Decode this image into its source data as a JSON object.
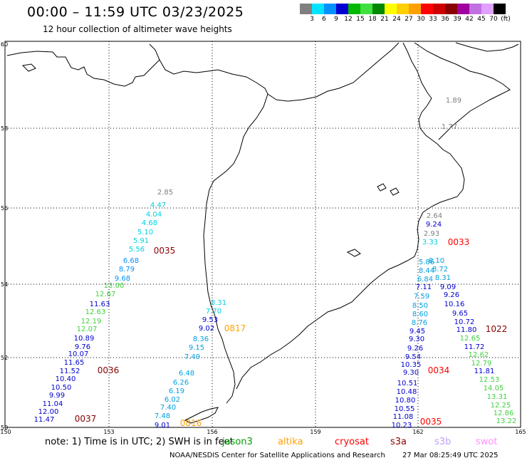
{
  "title": "00:00 – 11:59 UTC 03/23/2025",
  "subtitle": "12 hour collection of altimeter wave heights",
  "color_scale": {
    "labels": [
      "3",
      "6",
      "9",
      "12",
      "15",
      "18",
      "21",
      "24",
      "27",
      "30",
      "33",
      "36",
      "39",
      "42",
      "45",
      "70",
      "(ft)"
    ],
    "colors": [
      "#808080",
      "#00e5ff",
      "#0090ff",
      "#0000d0",
      "#00b800",
      "#40e040",
      "#008800",
      "#ffff00",
      "#ffd000",
      "#ffa000",
      "#ff0000",
      "#cc0000",
      "#8a0000",
      "#a000a0",
      "#c070e0",
      "#e0a0ff",
      "#000000"
    ]
  },
  "grid": {
    "lat_labels": [
      "60",
      "58",
      "56",
      "54",
      "52",
      "50"
    ],
    "lon_labels": [
      "150",
      "153",
      "156",
      "159",
      "162",
      "165"
    ]
  },
  "tracks": [
    {
      "color": "#808080",
      "values": [
        "2.85"
      ]
    },
    {
      "color": "#00d0e0",
      "values": [
        "4.47",
        "4.04",
        "4.68",
        "5.10",
        "5.91",
        "5.56"
      ]
    },
    {
      "color": "#0090ff",
      "values": [
        "6.68",
        "8.79",
        "9.68"
      ]
    },
    {
      "color": "#40d040",
      "values": [
        "13.00",
        "12.67"
      ]
    },
    {
      "color": "#0000d0",
      "values": [
        "11.63"
      ]
    },
    {
      "color": "#40d040",
      "values": [
        "12.63",
        "12.19",
        "12.07"
      ]
    },
    {
      "color": "#0000d0",
      "values": [
        "10.89",
        "9.76",
        "10.07",
        "11.65",
        "11.52",
        "10.40",
        "10.50",
        "9.99",
        "11.04",
        "12.00",
        "11.47"
      ]
    },
    {
      "color": "#00d0e0",
      "values": [
        "8.31",
        "7.70"
      ]
    },
    {
      "color": "#0000d0",
      "values": [
        "9.53",
        "9.02"
      ]
    },
    {
      "color": "#00a0e0",
      "values": [
        "8.36",
        "9.15",
        "7.49",
        "6.48",
        "6.26",
        "6.19",
        "6.02",
        "7.40",
        "7.48"
      ]
    },
    {
      "color": "#0000d0",
      "values": [
        "9.01"
      ]
    },
    {
      "color": "#808080",
      "values": [
        "1.89",
        "1.77",
        "2.64"
      ]
    },
    {
      "color": "#0000d0",
      "values": [
        "9.24"
      ]
    },
    {
      "color": "#808080",
      "values": [
        "2.93"
      ]
    },
    {
      "color": "#00d0e0",
      "values": [
        "3.33"
      ]
    },
    {
      "color": "#00a0e0",
      "values": [
        "5.86",
        "8.10",
        "8.44",
        "8.72",
        "6.84",
        "8.31"
      ]
    },
    {
      "color": "#0000d0",
      "values": [
        "7.11",
        "9.09"
      ]
    },
    {
      "color": "#00a0e0",
      "values": [
        "7.59"
      ]
    },
    {
      "color": "#0000d0",
      "values": [
        "9.26"
      ]
    },
    {
      "color": "#00a0e0",
      "values": [
        "8.50"
      ]
    },
    {
      "color": "#0000d0",
      "values": [
        "10.16"
      ]
    },
    {
      "color": "#00a0e0",
      "values": [
        "8.60"
      ]
    },
    {
      "color": "#0000d0",
      "values": [
        "9.65"
      ]
    },
    {
      "color": "#00a0e0",
      "values": [
        "8.76"
      ]
    },
    {
      "color": "#0000d0",
      "values": [
        "10.72",
        "9.45",
        "11.80"
      ]
    },
    {
      "color": "#40d040",
      "values": [
        "12.65"
      ]
    },
    {
      "color": "#0000d0",
      "values": [
        "9.30",
        "9.26",
        "11.72",
        "9.54"
      ]
    },
    {
      "color": "#40d040",
      "values": [
        "12.62"
      ]
    },
    {
      "color": "#0000d0",
      "values": [
        "10.35"
      ]
    },
    {
      "color": "#40d040",
      "values": [
        "12.79"
      ]
    },
    {
      "color": "#0000d0",
      "values": [
        "9.30",
        "11.81"
      ]
    },
    {
      "color": "#40d040",
      "values": [
        "12.53"
      ]
    },
    {
      "color": "#0000d0",
      "values": [
        "10.51"
      ]
    },
    {
      "color": "#40d040",
      "values": [
        "14.05"
      ]
    },
    {
      "color": "#0000d0",
      "values": [
        "10.48"
      ]
    },
    {
      "color": "#40d040",
      "values": [
        "13.31"
      ]
    },
    {
      "color": "#0000d0",
      "values": [
        "10.80"
      ]
    },
    {
      "color": "#40d040",
      "values": [
        "12.25"
      ]
    },
    {
      "color": "#0000d0",
      "values": [
        "10.55"
      ]
    },
    {
      "color": "#40d040",
      "values": [
        "12.86"
      ]
    },
    {
      "color": "#0000d0",
      "values": [
        "11.08"
      ]
    },
    {
      "color": "#40d040",
      "values": [
        "13.22"
      ]
    },
    {
      "color": "#0000d0",
      "values": [
        "10.23"
      ]
    }
  ],
  "time_labels": [
    {
      "text": "0035",
      "color": "#8a0000"
    },
    {
      "text": "0036",
      "color": "#8a0000"
    },
    {
      "text": "0037",
      "color": "#8a0000"
    },
    {
      "text": "0817",
      "color": "#ffa000"
    },
    {
      "text": "0816",
      "color": "#ffa000"
    },
    {
      "text": "0033",
      "color": "#ff0000"
    },
    {
      "text": "1022",
      "color": "#8a0000"
    },
    {
      "text": "0034",
      "color": "#ff0000"
    },
    {
      "text": "0035",
      "color": "#ff0000"
    }
  ],
  "note": "note: 1) Time is in UTC; 2) SWH is in feet",
  "satellites": [
    {
      "name": "jason3",
      "color": "#00a000"
    },
    {
      "name": "altika",
      "color": "#ffa000"
    },
    {
      "name": "cryosat",
      "color": "#ff0000"
    },
    {
      "name": "s3a",
      "color": "#8a0000"
    },
    {
      "name": "s3b",
      "color": "#c0a0ff"
    },
    {
      "name": "swot",
      "color": "#ff90ff"
    }
  ],
  "footer": {
    "left": "NOAA/NESDIS Center for Satellite Applications and Research",
    "right": "27 Mar 08:25:49 UTC 2025"
  }
}
